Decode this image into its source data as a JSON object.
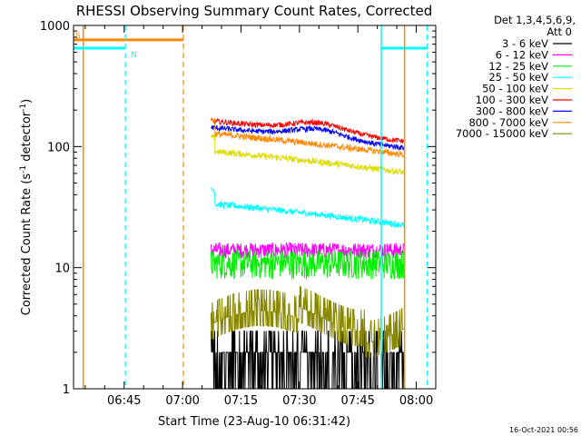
{
  "chart_data": {
    "type": "line",
    "title": "RHESSI Observing Summary Count Rates, Corrected",
    "xlabel": "Start Time (23-Aug-10 06:31:42)",
    "ylabel_main": "Corrected Count Rate (s",
    "ylabel_sup1": "-1",
    "ylabel_mid": " detector",
    "ylabel_sup2": "-1",
    "ylabel_end": ")",
    "x_unit": "minutes since 00:00 UT",
    "xlim": [
      392,
      485
    ],
    "ylim": [
      1,
      1000
    ],
    "yscale": "log",
    "x_ticks": [
      {
        "v": 405,
        "label": "06:45"
      },
      {
        "v": 420,
        "label": "07:00"
      },
      {
        "v": 435,
        "label": "07:15"
      },
      {
        "v": 450,
        "label": "07:30"
      },
      {
        "v": 465,
        "label": "07:45"
      },
      {
        "v": 480,
        "label": "08:00"
      }
    ],
    "y_ticks": [
      {
        "v": 1,
        "label": "1"
      },
      {
        "v": 10,
        "label": "10"
      },
      {
        "v": 100,
        "label": "100"
      },
      {
        "v": 1000,
        "label": "1000"
      }
    ],
    "legend_header": [
      "Det 1,3,4,5,6,9,",
      "Att 0"
    ],
    "legend_location": "outside-right-top",
    "footer_date": "16-Oct-2021 00:56",
    "data_start": 427.3,
    "data_end": 476.8,
    "series": [
      {
        "name": "3 - 6 keV",
        "color": "#000000",
        "level": 1.8,
        "shape": "noisy-low"
      },
      {
        "name": "6 - 12 keV",
        "color": "#ff00ff",
        "level": 14,
        "shape": "flat"
      },
      {
        "name": "12 - 25 keV",
        "color": "#00ee00",
        "level": 11,
        "shape": "flat-noisy"
      },
      {
        "name": "25 - 50 keV",
        "color": "#00ffff",
        "level": 25,
        "shape": "decay"
      },
      {
        "name": "50 - 100 keV",
        "color": "#dddd00",
        "level": 68,
        "shape": "decay"
      },
      {
        "name": "100 - 300 keV",
        "color": "#ff0000",
        "level": 130,
        "shape": "hump"
      },
      {
        "name": "300 - 800 keV",
        "color": "#0000ff",
        "level": 115,
        "shape": "hump"
      },
      {
        "name": "800 - 7000 keV",
        "color": "#ff8800",
        "level": 95,
        "shape": "decay"
      },
      {
        "name": "7000 - 15000 keV",
        "color": "#888800",
        "level": 4.5,
        "shape": "steps"
      }
    ],
    "annotations": [
      {
        "type": "solid-vline",
        "x": 394.5,
        "color": "#ff8800"
      },
      {
        "type": "hbar",
        "x0": 392,
        "x1": 420.2,
        "y": 760,
        "color": "#ff8800",
        "label": "S"
      },
      {
        "type": "hbar",
        "x0": 392,
        "x1": 405.3,
        "y": 650,
        "color": "#00ffff",
        "label": "N"
      },
      {
        "type": "dash-vline",
        "x": 405.3,
        "color": "#00ffff"
      },
      {
        "type": "dash-vline",
        "x": 420.2,
        "color": "#ff8800"
      },
      {
        "type": "solid-vline",
        "x": 471.0,
        "color": "#00ffff"
      },
      {
        "type": "hbar",
        "x0": 471.0,
        "x1": 482.8,
        "y": 650,
        "color": "#00ffff",
        "label": ""
      },
      {
        "type": "dash-vline",
        "x": 482.8,
        "color": "#00ffff"
      },
      {
        "type": "solid-vline",
        "x": 477.0,
        "color": "#ff8800"
      }
    ]
  }
}
